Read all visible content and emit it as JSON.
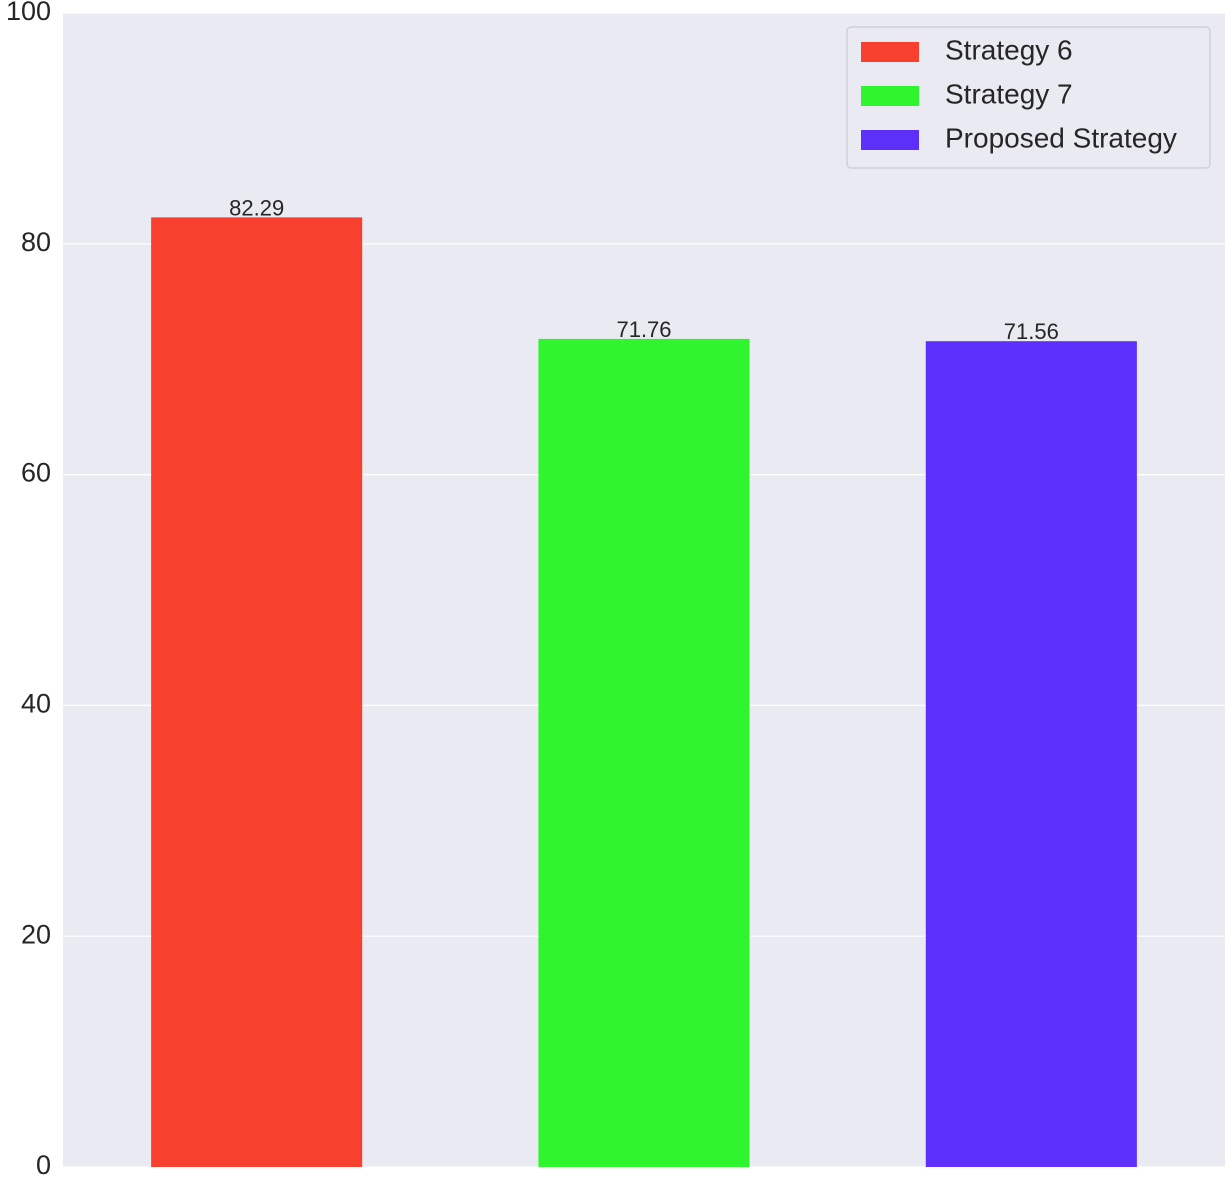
{
  "chart_data": {
    "type": "bar",
    "categories": [
      "Strategy 6",
      "Strategy 7",
      "Proposed Strategy"
    ],
    "values": [
      82.29,
      71.76,
      71.56
    ],
    "value_labels": [
      "82.29",
      "71.76",
      "71.56"
    ],
    "colors": [
      "#f7412e",
      "#2ff52f",
      "#5c30fa"
    ],
    "title": "",
    "xlabel": "",
    "ylabel": "",
    "ylim": [
      0,
      100
    ],
    "yticks": [
      0,
      20,
      40,
      60,
      80,
      100
    ],
    "ytick_labels": [
      "0",
      "20",
      "40",
      "60",
      "80",
      "100"
    ],
    "grid": true,
    "legend": {
      "position": "top-right",
      "entries": [
        "Strategy 6",
        "Strategy 7",
        "Proposed Strategy"
      ]
    },
    "background_color": "#eaeaf2",
    "grid_color": "#ffffff"
  }
}
